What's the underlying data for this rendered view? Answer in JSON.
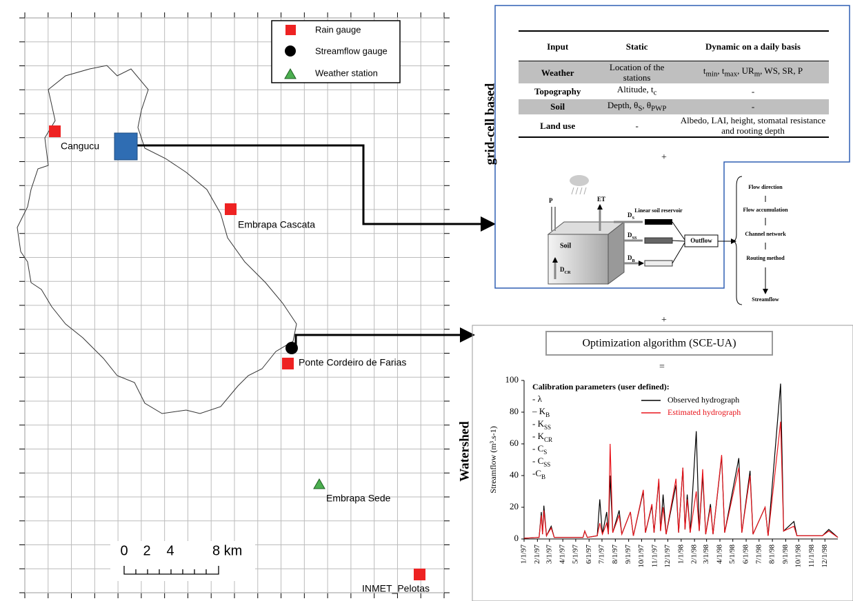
{
  "map": {
    "legend": [
      "Rain gauge",
      "Streamflow gauge",
      "Weather station"
    ],
    "stations": [
      "Cangucu",
      "Embrapa Cascata",
      "Ponte Cordeiro de Farias",
      "Embrapa Sede",
      "INMET_Pelotas"
    ],
    "scale_bar": [
      "0",
      "2",
      "4",
      "8 km"
    ]
  },
  "side_labels": [
    "grid-cell based",
    "Watershed"
  ],
  "table": {
    "header": [
      "Input",
      "Static",
      "Dynamic on a daily basis"
    ],
    "rows": [
      [
        "Weather",
        "Location of the stations",
        [
          "t",
          {
            "sub": "min"
          },
          ", t",
          {
            "sub": "max"
          },
          ", UR",
          {
            "sub": "m"
          },
          ", WS, SR, P"
        ]
      ],
      [
        "Topography",
        [
          "Altitude, t",
          {
            "sub": "c"
          }
        ],
        "-"
      ],
      [
        "Soil",
        [
          "Depth, θ",
          {
            "sub": "S"
          },
          ", θ",
          {
            "sub": "PWP"
          }
        ],
        "-"
      ],
      [
        "Land use",
        "-",
        "Albedo, LAI, height, stomatal resistance and rooting depth"
      ]
    ]
  },
  "plus_top": "+",
  "diagram": {
    "precip": "P",
    "et": "ET",
    "reservoir": "Linear soil reservoir",
    "soil": "Soil",
    "d_cr": [
      "D",
      {
        "sub": "CR"
      }
    ],
    "d_s": [
      "D",
      {
        "sub": "S"
      }
    ],
    "d_ss": [
      "D",
      {
        "sub": "SS"
      }
    ],
    "d_b": [
      "D",
      {
        "sub": "B"
      }
    ],
    "outflow": "Outflow",
    "routing": [
      "Flow direction",
      "Flow accumulation",
      "Channel network",
      "Routing method",
      "Streamflow"
    ]
  },
  "plus_bottom": "+",
  "optimization": "Optimization algorithm (SCE-UA)",
  "equals": "=",
  "chart_data": {
    "type": "line",
    "ylabel": "Streamflow (m³.s-1)",
    "annotation": {
      "title": "Calibration parameters (user defined):",
      "items": [
        "- λ",
        [
          "– K",
          {
            "sub": "B"
          }
        ],
        [
          "- K",
          {
            "sub": "SS"
          }
        ],
        [
          "- K",
          {
            "sub": "CR"
          }
        ],
        [
          "- C",
          {
            "sub": "S"
          }
        ],
        [
          "- C",
          {
            "sub": "SS"
          }
        ],
        [
          "-C",
          {
            "sub": "B"
          }
        ]
      ]
    },
    "xlim": [
      "1/1/97",
      "12/31/98"
    ],
    "xticks": [
      "1/1/97",
      "2/1/97",
      "3/1/97",
      "4/1/97",
      "5/1/97",
      "6/1/97",
      "7/1/97",
      "8/1/97",
      "9/1/97",
      "10/1/97",
      "11/1/97",
      "12/1/97",
      "1/1/98",
      "2/1/98",
      "3/1/98",
      "4/1/98",
      "5/1/98",
      "6/1/98",
      "7/1/98",
      "8/1/98",
      "9/1/98",
      "10/1/98",
      "11/1/98",
      "12/1/98"
    ],
    "ylim": [
      0,
      100
    ],
    "yticks": [
      0,
      20,
      40,
      60,
      80,
      100
    ],
    "x": [
      "1/1/97",
      "2/5/97",
      "2/10/97",
      "2/13/97",
      "2/16/97",
      "2/22/97",
      "3/5/97",
      "3/12/97",
      "5/18/97",
      "5/22/97",
      "5/28/97",
      "6/20/97",
      "6/26/97",
      "7/2/97",
      "7/12/97",
      "7/16/97",
      "7/20/97",
      "7/26/97",
      "8/10/97",
      "8/16/97",
      "9/5/97",
      "9/12/97",
      "10/5/97",
      "10/10/97",
      "10/25/97",
      "10/30/97",
      "11/10/97",
      "11/14/97",
      "11/20/97",
      "11/27/97",
      "12/20/97",
      "12/26/97",
      "1/5/98",
      "1/10/98",
      "1/15/98",
      "1/22/98",
      "2/5/98",
      "2/12/98",
      "2/20/98",
      "2/27/98",
      "3/10/98",
      "3/16/98",
      "4/5/98",
      "4/12/98",
      "5/15/98",
      "5/22/98",
      "6/10/98",
      "6/17/98",
      "7/15/98",
      "7/22/98",
      "8/20/98",
      "8/27/98",
      "9/20/98",
      "9/27/98",
      "11/25/98",
      "12/10/98",
      "12/31/98"
    ],
    "series": [
      {
        "name": "Observed hydrograph",
        "color": "#000000",
        "values": [
          0.5,
          1,
          17,
          3,
          21,
          2,
          8,
          1,
          1,
          5,
          1,
          2,
          25,
          3,
          17,
          3,
          40,
          4,
          18,
          3,
          17,
          2,
          30,
          4,
          21,
          4,
          37,
          5,
          28,
          3,
          34,
          4,
          45,
          6,
          28,
          4,
          68,
          5,
          40,
          3,
          22,
          3,
          52,
          4,
          51,
          4,
          43,
          3,
          20,
          2,
          98,
          5,
          11,
          2,
          2,
          6,
          1
        ]
      },
      {
        "name": "Estimated hydrograph",
        "color": "#e8141b",
        "values": [
          0.5,
          1,
          15,
          3,
          18,
          2,
          7,
          1,
          1,
          5,
          1,
          2,
          10,
          3,
          10,
          3,
          60,
          4,
          15,
          3,
          17,
          2,
          31,
          4,
          22,
          4,
          38,
          5,
          20,
          3,
          38,
          4,
          45,
          6,
          25,
          4,
          30,
          5,
          44,
          3,
          20,
          3,
          53,
          4,
          45,
          4,
          40,
          3,
          20,
          2,
          74,
          5,
          8,
          2,
          2,
          5,
          1
        ]
      }
    ]
  }
}
